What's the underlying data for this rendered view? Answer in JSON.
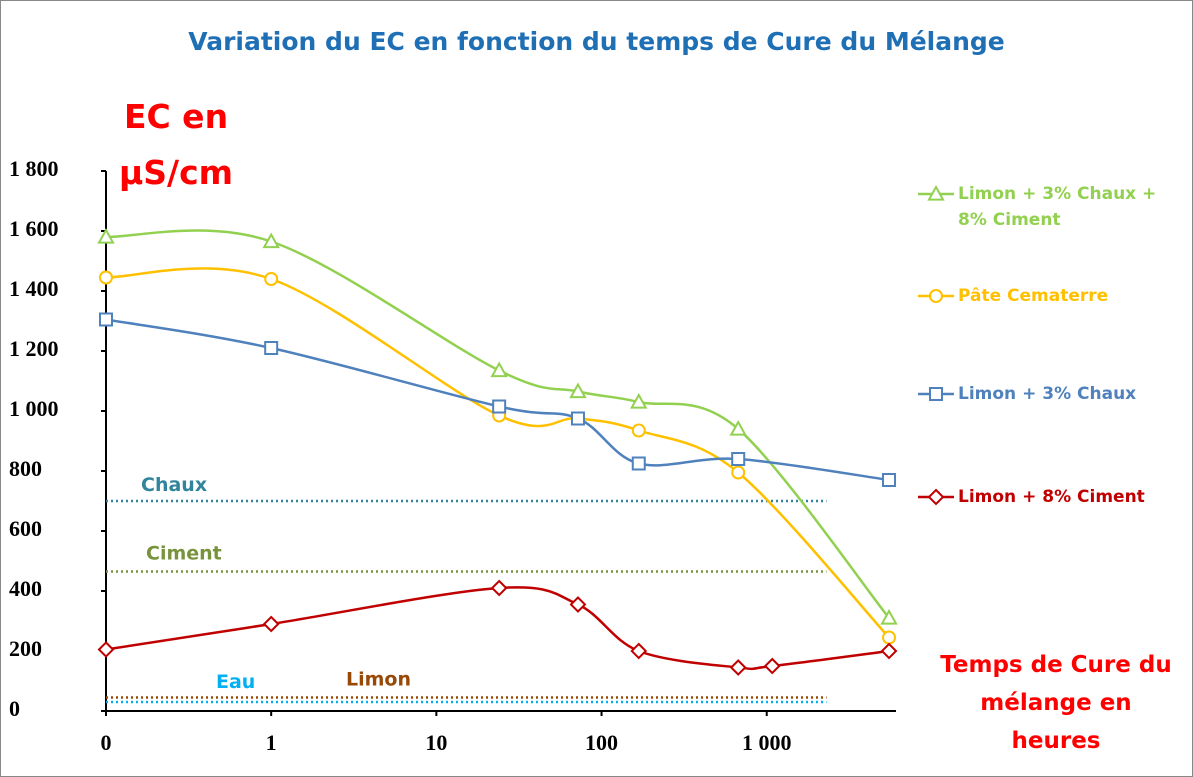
{
  "chart_data": {
    "type": "line",
    "title": "Variation du EC en fonction du temps de Cure du Mélange",
    "y_label": "EC en µS/cm",
    "x_label": "Temps de Cure du mélange en heures",
    "x_scale": "log",
    "xlim": [
      0.1,
      6500
    ],
    "xticks": [
      {
        "value": 0.1,
        "label": "0"
      },
      1,
      10,
      100,
      {
        "value": 1000,
        "label": "1 000"
      }
    ],
    "ylim": [
      0,
      1800
    ],
    "yticks": [
      0,
      200,
      400,
      600,
      800,
      {
        "value": 1000,
        "label": "1 000"
      },
      {
        "value": 1200,
        "label": "1 200"
      },
      {
        "value": 1400,
        "label": "1 400"
      },
      {
        "value": 1600,
        "label": "1 600"
      },
      {
        "value": 1800,
        "label": "1 800"
      }
    ],
    "grid": false,
    "smooth": true,
    "legend": "right",
    "series": [
      {
        "name": "Limon + 3% Chaux + 8% Ciment",
        "color": "#92d050",
        "marker": "triangle",
        "x": [
          0.1,
          1,
          24,
          72,
          168,
          672,
          5500
        ],
        "values": [
          1580,
          1565,
          1135,
          1065,
          1030,
          940,
          310
        ]
      },
      {
        "name": "Pâte Cematerre",
        "color": "#ffc000",
        "marker": "circle",
        "x": [
          0.1,
          1,
          24,
          72,
          168,
          672,
          5500
        ],
        "values": [
          1445,
          1440,
          985,
          975,
          935,
          795,
          245
        ]
      },
      {
        "name": "Limon + 3% Chaux",
        "color": "#4f81bd",
        "marker": "square",
        "x": [
          0.1,
          1,
          24,
          72,
          168,
          672,
          5500
        ],
        "values": [
          1305,
          1210,
          1015,
          975,
          825,
          840,
          770
        ]
      },
      {
        "name": "Limon + 8% Ciment",
        "color": "#c00000",
        "marker": "diamond",
        "x": [
          0.1,
          1,
          24,
          72,
          168,
          672,
          1080,
          5500
        ],
        "values": [
          205,
          290,
          410,
          355,
          200,
          145,
          150,
          200
        ]
      }
    ],
    "reference_lines": [
      {
        "name": "Chaux",
        "color": "#31849b",
        "value": 700,
        "xrange": [
          0.1,
          2300
        ]
      },
      {
        "name": "Ciment",
        "color": "#77933c",
        "value": 465,
        "xrange": [
          0.1,
          2300
        ]
      },
      {
        "name": "Eau",
        "color": "#00b0f0",
        "value": 30,
        "xrange": [
          0.1,
          2300
        ]
      },
      {
        "name": "Limon",
        "color": "#984807",
        "value": 45,
        "xrange": [
          0.1,
          2300
        ]
      }
    ]
  }
}
